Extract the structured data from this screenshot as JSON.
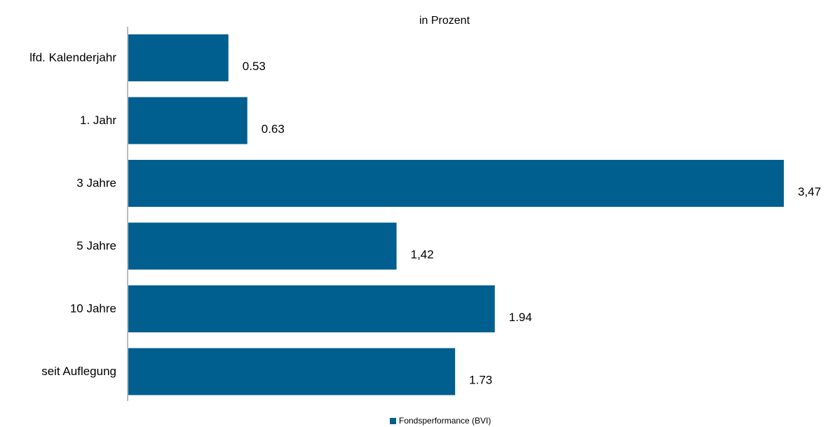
{
  "chart_data": {
    "type": "bar",
    "orientation": "horizontal",
    "title": "in Prozent",
    "categories": [
      "lfd. Kalenderjahr",
      "1. Jahr",
      "3 Jahre",
      "5 Jahre",
      "10 Jahre",
      "seit Auflegung"
    ],
    "value_labels": [
      "0.53",
      "0.63",
      "3,47",
      "1,42",
      "1.94",
      "1.73"
    ],
    "series": [
      {
        "name": "Fondsperformance (BVI)",
        "values": [
          0.53,
          0.63,
          3.47,
          1.42,
          1.94,
          1.73
        ]
      }
    ],
    "xlim": [
      0,
      3.47
    ],
    "grid": false,
    "legend_position": "bottom",
    "colors": {
      "bar": "#005f8f",
      "axis": "#a6a6a6"
    }
  }
}
